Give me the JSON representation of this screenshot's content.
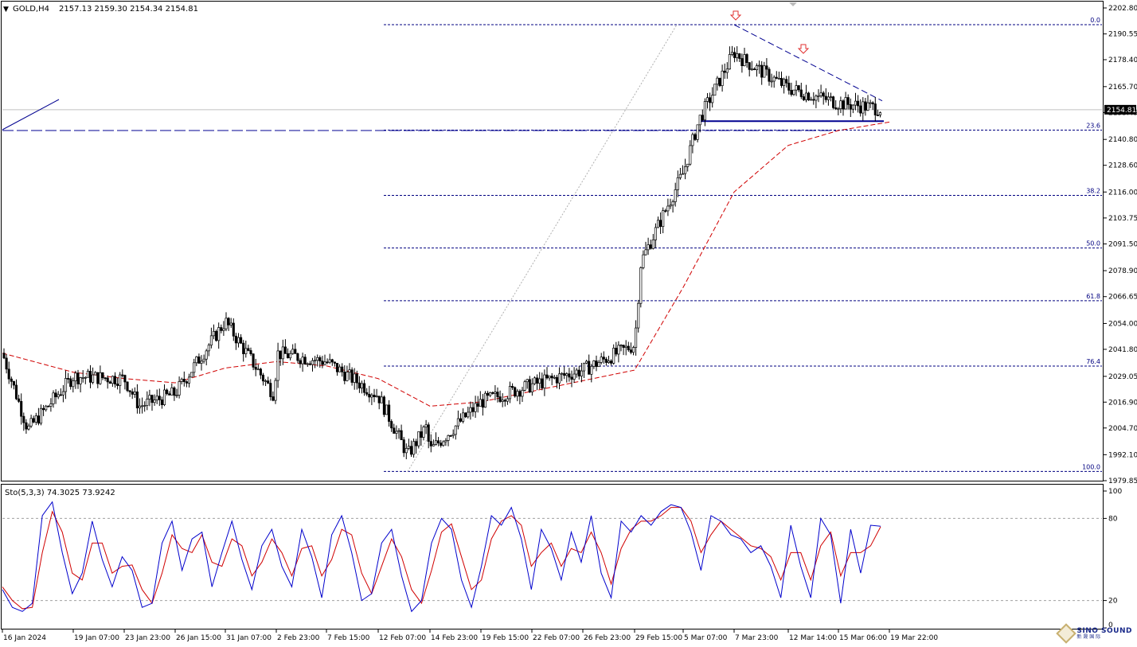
{
  "header": {
    "symbol": "GOLD,H4",
    "ohlc": "2157.13 2159.30 2154.34 2154.81",
    "marker": "▼"
  },
  "price_axis": {
    "ticks": [
      "2202.80",
      "2190.55",
      "2178.40",
      "2165.70",
      "2153.45",
      "2140.80",
      "2128.60",
      "2116.00",
      "2103.75",
      "2091.50",
      "2078.90",
      "2066.65",
      "2054.00",
      "2041.80",
      "2029.05",
      "2016.90",
      "2004.70",
      "1992.10",
      "1979.85"
    ],
    "current_price": "2154.81"
  },
  "time_axis": {
    "labels": [
      "16 Jan 2024",
      "19 Jan 07:00",
      "23 Jan 23:00",
      "26 Jan 15:00",
      "31 Jan 07:00",
      "2 Feb 23:00",
      "7 Feb 15:00",
      "12 Feb 07:00",
      "14 Feb 23:00",
      "19 Feb 15:00",
      "22 Feb 07:00",
      "26 Feb 23:00",
      "29 Feb 15:00",
      "5 Mar 07:00",
      "7 Mar 23:00",
      "12 Mar 14:00",
      "15 Mar 06:00",
      "19 Mar 22:00"
    ]
  },
  "fib_labels": [
    "0.0",
    "23.6",
    "38.2",
    "50.0",
    "61.8",
    "76.4",
    "100.0"
  ],
  "stoch": {
    "title": "Sto(5,3,3) 74.3025 73.9242",
    "ticks": [
      "100",
      "80",
      "20",
      "0"
    ]
  },
  "watermark": {
    "en": "SINO SOUND",
    "cn": "新 晟 国 际"
  },
  "colors": {
    "candle": "#000000",
    "fib": "#000080",
    "ma": "#d00000",
    "trendline": "#000090",
    "stoch_main": "#0000cc",
    "stoch_signal": "#d00000",
    "arrow": "#e03030"
  },
  "chart_data": {
    "type": "candlestick",
    "symbol": "GOLD",
    "timeframe": "H4",
    "last_bar": {
      "open": 2157.13,
      "high": 2159.3,
      "low": 2154.34,
      "close": 2154.81
    },
    "ylim": [
      1979.85,
      2202.8
    ],
    "anchors": [
      {
        "t": "16 Jan 2024",
        "v": 2040
      },
      {
        "t": "17 Jan",
        "v": 2004
      },
      {
        "t": "19 Jan 07:00",
        "v": 2029
      },
      {
        "t": "23 Jan 23:00",
        "v": 2028
      },
      {
        "t": "24 Jan",
        "v": 2015
      },
      {
        "t": "26 Jan 15:00",
        "v": 2021
      },
      {
        "t": "31 Jan 07:00",
        "v": 2055
      },
      {
        "t": "2 Feb 23:00",
        "v": 2040
      },
      {
        "t": "5 Feb",
        "v": 2020
      },
      {
        "t": "7 Feb 15:00",
        "v": 2036
      },
      {
        "t": "12 Feb 07:00",
        "v": 2020
      },
      {
        "t": "13 Feb",
        "v": 1992
      },
      {
        "t": "14 Feb 23:00",
        "v": 1994
      },
      {
        "t": "15 Feb",
        "v": 2005
      },
      {
        "t": "19 Feb 15:00",
        "v": 2017
      },
      {
        "t": "22 Feb 07:00",
        "v": 2025
      },
      {
        "t": "26 Feb 23:00",
        "v": 2032
      },
      {
        "t": "29 Feb 15:00",
        "v": 2044
      },
      {
        "t": "1 Mar",
        "v": 2083
      },
      {
        "t": "5 Mar 07:00",
        "v": 2125
      },
      {
        "t": "6 Mar",
        "v": 2150
      },
      {
        "t": "7 Mar 23:00",
        "v": 2182
      },
      {
        "t": "8 Mar",
        "v": 2178
      },
      {
        "t": "12 Mar 14:00",
        "v": 2165
      },
      {
        "t": "15 Mar 06:00",
        "v": 2158
      },
      {
        "t": "19 Mar 22:00",
        "v": 2154.81
      }
    ],
    "fibonacci": {
      "high": 2194.9,
      "low": 1984.2,
      "levels": [
        {
          "label": "0.0",
          "price": 2194.9
        },
        {
          "label": "23.6",
          "price": 2145.2
        },
        {
          "label": "38.2",
          "price": 2114.4
        },
        {
          "label": "50.0",
          "price": 2089.6
        },
        {
          "label": "61.8",
          "price": 2064.7
        },
        {
          "label": "76.4",
          "price": 2033.9
        },
        {
          "label": "100.0",
          "price": 1984.2
        }
      ]
    },
    "horizontal_levels": [
      2149.4,
      2145.0
    ],
    "descending_trendline": [
      {
        "t": "7 Mar 23:00",
        "v": 2194.9
      },
      {
        "t": "19 Mar 22:00",
        "v": 2159.0
      }
    ],
    "moving_average": [
      {
        "t": "16 Jan 2024",
        "v": 2040
      },
      {
        "t": "19 Jan 07:00",
        "v": 2031
      },
      {
        "t": "23 Jan 23:00",
        "v": 2028
      },
      {
        "t": "26 Jan 15:00",
        "v": 2026
      },
      {
        "t": "31 Jan 07:00",
        "v": 2033
      },
      {
        "t": "2 Feb 23:00",
        "v": 2036
      },
      {
        "t": "7 Feb 15:00",
        "v": 2034
      },
      {
        "t": "12 Feb 07:00",
        "v": 2028
      },
      {
        "t": "14 Feb 23:00",
        "v": 2015
      },
      {
        "t": "19 Feb 15:00",
        "v": 2017
      },
      {
        "t": "22 Feb 07:00",
        "v": 2022
      },
      {
        "t": "26 Feb 23:00",
        "v": 2027
      },
      {
        "t": "29 Feb 15:00",
        "v": 2032
      },
      {
        "t": "5 Mar 07:00",
        "v": 2071
      },
      {
        "t": "7 Mar 23:00",
        "v": 2116
      },
      {
        "t": "12 Mar 14:00",
        "v": 2138
      },
      {
        "t": "15 Mar 06:00",
        "v": 2145
      },
      {
        "t": "19 Mar 22:00",
        "v": 2149
      }
    ],
    "stochastic": {
      "params": "5,3,3",
      "main": 74.3025,
      "signal": 73.9242,
      "ylim": [
        0,
        100
      ],
      "levels": [
        20,
        80
      ],
      "main_series": [
        28,
        15,
        12,
        18,
        82,
        92,
        55,
        25,
        40,
        78,
        50,
        30,
        52,
        42,
        15,
        18,
        62,
        78,
        42,
        65,
        70,
        30,
        55,
        78,
        50,
        28,
        60,
        72,
        45,
        30,
        72,
        52,
        22,
        68,
        82,
        55,
        20,
        25,
        62,
        72,
        38,
        12,
        20,
        62,
        80,
        72,
        35,
        15,
        45,
        82,
        75,
        88,
        65,
        28,
        72,
        58,
        35,
        70,
        48,
        82,
        40,
        22,
        78,
        70,
        82,
        75,
        85,
        90,
        88,
        70,
        42,
        82,
        78,
        68,
        65,
        55,
        60,
        45,
        22,
        75,
        45,
        22,
        80,
        68,
        18,
        72,
        40,
        75,
        74.3
      ],
      "signal_series": [
        30,
        20,
        14,
        15,
        55,
        85,
        70,
        40,
        35,
        62,
        62,
        40,
        45,
        46,
        28,
        18,
        40,
        68,
        58,
        55,
        68,
        48,
        45,
        65,
        60,
        38,
        48,
        65,
        55,
        38,
        58,
        60,
        38,
        50,
        72,
        68,
        40,
        25,
        45,
        65,
        52,
        28,
        18,
        42,
        70,
        76,
        52,
        28,
        35,
        65,
        78,
        82,
        75,
        45,
        55,
        62,
        45,
        58,
        55,
        70,
        55,
        32,
        58,
        72,
        78,
        78,
        82,
        88,
        88,
        78,
        55,
        68,
        78,
        72,
        66,
        60,
        58,
        52,
        35,
        55,
        55,
        35,
        60,
        70,
        38,
        55,
        55,
        60,
        73.9
      ]
    }
  }
}
